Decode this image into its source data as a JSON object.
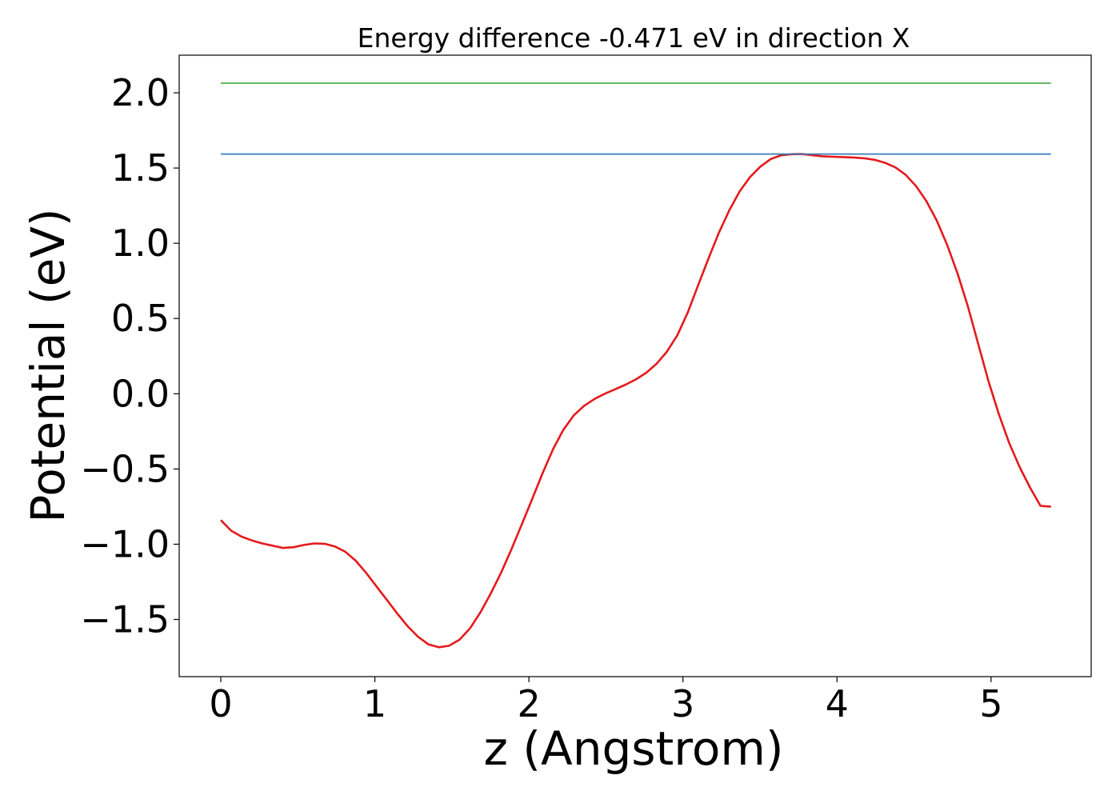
{
  "chart_data": {
    "type": "line",
    "title": "Energy difference -0.471 eV in direction X",
    "xlabel": "z (Angstrom)",
    "ylabel": "Potential (eV)",
    "xlim": [
      -0.27,
      5.65
    ],
    "ylim": [
      -1.88,
      2.25
    ],
    "x_ticks": [
      0,
      1,
      2,
      3,
      4,
      5
    ],
    "x_tick_labels": [
      "0",
      "1",
      "2",
      "3",
      "4",
      "5"
    ],
    "y_ticks": [
      -1.5,
      -1.0,
      -0.5,
      0.0,
      0.5,
      1.0,
      1.5,
      2.0
    ],
    "y_tick_labels": [
      "−1.5",
      "−1.0",
      "−0.5",
      "0.0",
      "0.5",
      "1.0",
      "1.5",
      "2.0"
    ],
    "grid": false,
    "series": [
      {
        "color": "#e41a1c",
        "x": [
          0,
          0.067,
          0.135,
          0.202,
          0.27,
          0.337,
          0.404,
          0.472,
          0.539,
          0.606,
          0.674,
          0.741,
          0.808,
          0.876,
          0.943,
          1.01,
          1.078,
          1.145,
          1.213,
          1.28,
          1.347,
          1.415,
          1.482,
          1.549,
          1.617,
          1.684,
          1.751,
          1.819,
          1.886,
          1.953,
          2.021,
          2.088,
          2.156,
          2.223,
          2.29,
          2.358,
          2.425,
          2.492,
          2.56,
          2.627,
          2.694,
          2.762,
          2.829,
          2.896,
          2.964,
          3.031,
          3.098,
          3.166,
          3.233,
          3.301,
          3.368,
          3.435,
          3.503,
          3.57,
          3.637,
          3.705,
          3.772,
          3.839,
          3.907,
          3.974,
          4.041,
          4.109,
          4.176,
          4.244,
          4.311,
          4.378,
          4.446,
          4.513,
          4.58,
          4.648,
          4.715,
          4.782,
          4.85,
          4.917,
          4.984,
          5.052,
          5.119,
          5.187,
          5.254,
          5.321,
          5.389
        ],
        "y": [
          -0.84,
          -0.91,
          -0.95,
          -0.975,
          -0.995,
          -1.01,
          -1.025,
          -1.02,
          -1.005,
          -0.995,
          -0.997,
          -1.015,
          -1.05,
          -1.11,
          -1.19,
          -1.28,
          -1.37,
          -1.46,
          -1.545,
          -1.615,
          -1.665,
          -1.685,
          -1.675,
          -1.635,
          -1.56,
          -1.455,
          -1.33,
          -1.19,
          -1.035,
          -0.87,
          -0.7,
          -0.53,
          -0.37,
          -0.24,
          -0.145,
          -0.08,
          -0.035,
          0.0,
          0.03,
          0.06,
          0.095,
          0.14,
          0.2,
          0.28,
          0.39,
          0.54,
          0.72,
          0.9,
          1.07,
          1.22,
          1.345,
          1.44,
          1.51,
          1.56,
          1.585,
          1.592,
          1.593,
          1.585,
          1.578,
          1.575,
          1.573,
          1.57,
          1.565,
          1.555,
          1.535,
          1.505,
          1.455,
          1.38,
          1.28,
          1.15,
          0.99,
          0.8,
          0.58,
          0.33,
          0.08,
          -0.14,
          -0.33,
          -0.49,
          -0.625,
          -0.745,
          -0.75
        ]
      },
      {
        "color": "#377eb8",
        "x": [
          0,
          5.389
        ],
        "y": [
          1.593,
          1.593
        ]
      },
      {
        "color": "#4daf4a",
        "x": [
          0,
          5.389
        ],
        "y": [
          2.064,
          2.064
        ]
      }
    ]
  }
}
